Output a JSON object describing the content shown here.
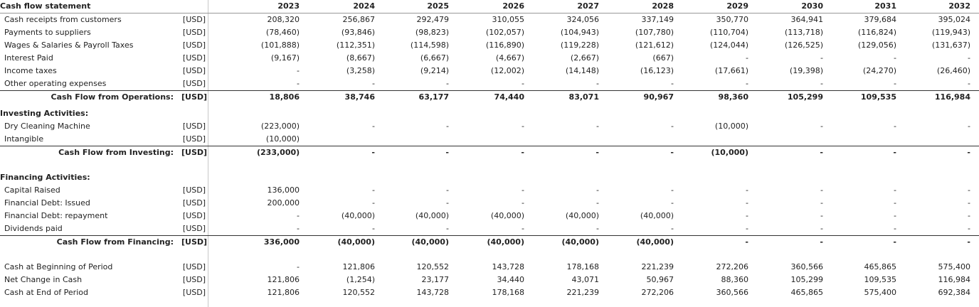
{
  "title": "Cash flow statement",
  "years": [
    "2023",
    "2024",
    "2025",
    "2026",
    "2027",
    "2028",
    "2029",
    "2030",
    "2031",
    "2032"
  ],
  "operations": [
    {
      "label": "Cash receipts from customers",
      "unit": "[USD]",
      "values": [
        "208,320",
        "256,867",
        "292,479",
        "310,055",
        "324,056",
        "337,149",
        "350,770",
        "364,941",
        "379,684",
        "395,024"
      ]
    },
    {
      "label": "Payments to suppliers",
      "unit": "[USD]",
      "values": [
        "(78,460)",
        "(93,846)",
        "(98,823)",
        "(102,057)",
        "(104,943)",
        "(107,780)",
        "(110,704)",
        "(113,718)",
        "(116,824)",
        "(119,943)"
      ]
    },
    {
      "label": "Wages & Salaries & Payroll Taxes",
      "unit": "[USD]",
      "values": [
        "(101,888)",
        "(112,351)",
        "(114,598)",
        "(116,890)",
        "(119,228)",
        "(121,612)",
        "(124,044)",
        "(126,525)",
        "(129,056)",
        "(131,637)"
      ]
    },
    {
      "label": "Interest Paid",
      "unit": "[USD]",
      "values": [
        "(9,167)",
        "(8,667)",
        "(6,667)",
        "(4,667)",
        "(2,667)",
        "(667)",
        "-",
        "-",
        "-",
        "-"
      ]
    },
    {
      "label": "Income taxes",
      "unit": "[USD]",
      "values": [
        "-",
        "(3,258)",
        "(9,214)",
        "(12,002)",
        "(14,148)",
        "(16,123)",
        "(17,661)",
        "(19,398)",
        "(24,270)",
        "(26,460)"
      ]
    },
    {
      "label": "Other operating expenses",
      "unit": "[USD]",
      "values": [
        "-",
        "-",
        "-",
        "-",
        "-",
        "-",
        "-",
        "-",
        "-",
        "-"
      ]
    }
  ],
  "operations_total": {
    "label": "Cash Flow from Operations:",
    "unit": "[USD]",
    "values": [
      "18,806",
      "38,746",
      "63,177",
      "74,440",
      "83,071",
      "90,967",
      "98,360",
      "105,299",
      "109,535",
      "116,984"
    ]
  },
  "investing_header": "Investing Activities:",
  "investing": [
    {
      "label": "Dry Cleaning Machine",
      "unit": "[USD]",
      "values": [
        "(223,000)",
        "-",
        "-",
        "-",
        "-",
        "-",
        "(10,000)",
        "-",
        "-",
        "-"
      ]
    },
    {
      "label": "Intangible",
      "unit": "[USD]",
      "values": [
        "(10,000)",
        "",
        "",
        "",
        "",
        "",
        "",
        "",
        "",
        ""
      ]
    }
  ],
  "investing_total": {
    "label": "Cash Flow from Investing:",
    "unit": "[USD]",
    "values": [
      "(233,000)",
      "-",
      "-",
      "-",
      "-",
      "-",
      "(10,000)",
      "-",
      "-",
      "-"
    ]
  },
  "financing_header": "Financing Activities:",
  "financing": [
    {
      "label": "Capital Raised",
      "unit": "[USD]",
      "values": [
        "136,000",
        "-",
        "-",
        "-",
        "-",
        "-",
        "-",
        "-",
        "-",
        "-"
      ]
    },
    {
      "label": "Financial Debt: Issued",
      "unit": "[USD]",
      "values": [
        "200,000",
        "-",
        "-",
        "-",
        "-",
        "-",
        "-",
        "-",
        "-",
        "-"
      ]
    },
    {
      "label": "Financial Debt: repayment",
      "unit": "[USD]",
      "values": [
        "-",
        "(40,000)",
        "(40,000)",
        "(40,000)",
        "(40,000)",
        "(40,000)",
        "-",
        "-",
        "-",
        "-"
      ]
    },
    {
      "label": "Dividends paid",
      "unit": "[USD]",
      "values": [
        "-",
        "-",
        "-",
        "-",
        "-",
        "-",
        "-",
        "-",
        "-",
        "-"
      ]
    }
  ],
  "financing_total": {
    "label": "Cash Flow from Financing:",
    "unit": "[USD]",
    "values": [
      "336,000",
      "(40,000)",
      "(40,000)",
      "(40,000)",
      "(40,000)",
      "(40,000)",
      "-",
      "-",
      "-",
      "-"
    ]
  },
  "summary": [
    {
      "label": "Cash at Beginning of Period",
      "unit": "[USD]",
      "values": [
        "-",
        "121,806",
        "120,552",
        "143,728",
        "178,168",
        "221,239",
        "272,206",
        "360,566",
        "465,865",
        "575,400"
      ]
    },
    {
      "label": "Net Change in Cash",
      "unit": "[USD]",
      "values": [
        "121,806",
        "(1,254)",
        "23,177",
        "34,440",
        "43,071",
        "50,967",
        "88,360",
        "105,299",
        "109,535",
        "116,984"
      ]
    },
    {
      "label": "Cash at End of Period",
      "unit": "[USD]",
      "values": [
        "121,806",
        "120,552",
        "143,728",
        "178,168",
        "221,239",
        "272,206",
        "360,566",
        "465,865",
        "575,400",
        "692,384"
      ]
    }
  ]
}
